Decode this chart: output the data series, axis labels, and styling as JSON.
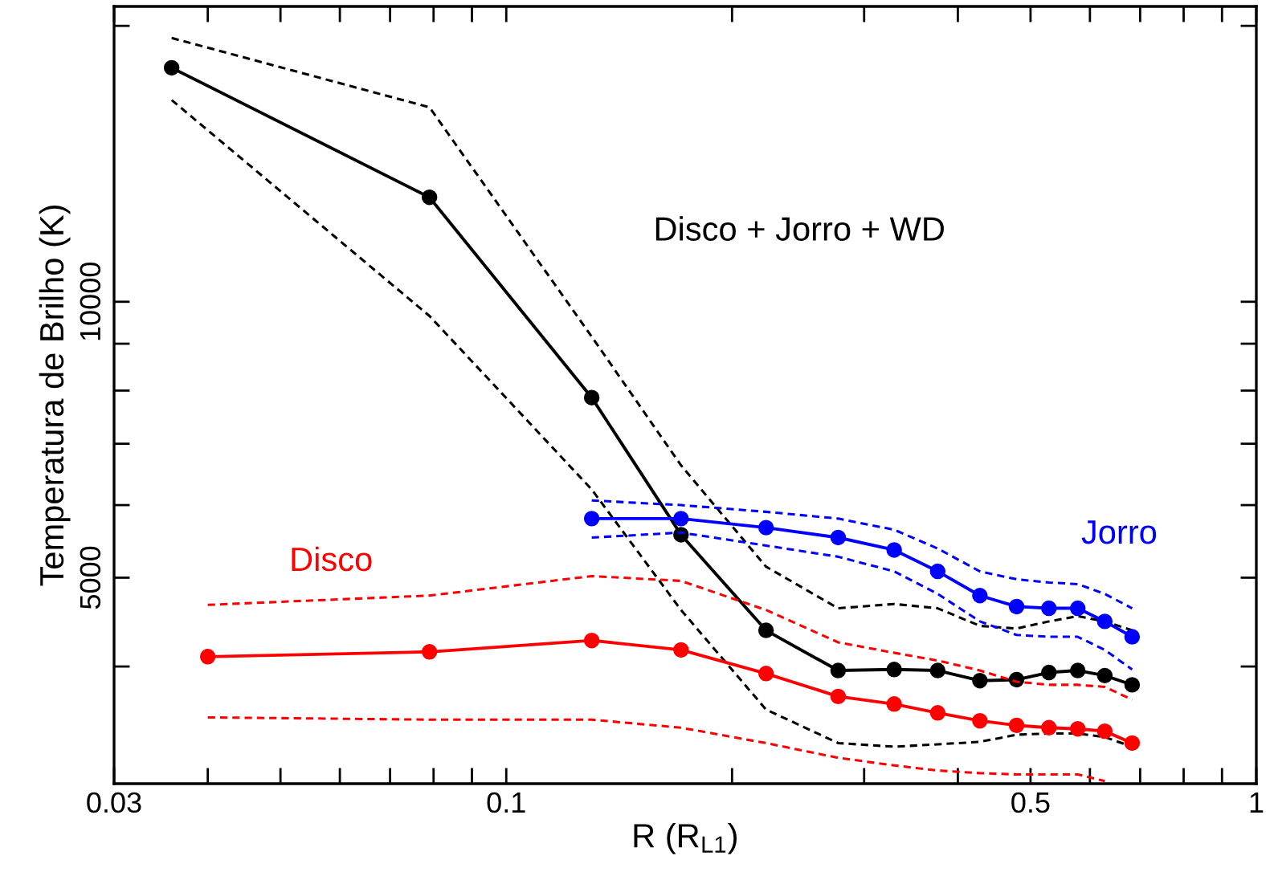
{
  "chart_data": {
    "type": "line",
    "xlabel": "R (R$_{L1}$)",
    "ylabel": "Temperatura de Brilho (K)",
    "log": "xy",
    "grid": false,
    "legend": false,
    "xlim": [
      0.03,
      1
    ],
    "ylim": [
      2980,
      21000
    ],
    "xticks": [
      {
        "value": 0.03,
        "label": "0.03"
      },
      {
        "value": 0.04,
        "label": null
      },
      {
        "value": 0.05,
        "label": null
      },
      {
        "value": 0.06,
        "label": null
      },
      {
        "value": 0.07,
        "label": null
      },
      {
        "value": 0.08,
        "label": null
      },
      {
        "value": 0.09,
        "label": null
      },
      {
        "value": 0.1,
        "label": "0.1"
      },
      {
        "value": 0.2,
        "label": null
      },
      {
        "value": 0.3,
        "label": null
      },
      {
        "value": 0.4,
        "label": null
      },
      {
        "value": 0.5,
        "label": "0.5"
      },
      {
        "value": 0.6,
        "label": null
      },
      {
        "value": 0.7,
        "label": null
      },
      {
        "value": 0.8,
        "label": null
      },
      {
        "value": 0.9,
        "label": null
      },
      1
    ],
    "yticks": [
      {
        "value": 4000,
        "label": null
      },
      5000,
      {
        "value": 6000,
        "label": null
      },
      {
        "value": 7000,
        "label": null
      },
      {
        "value": 8000,
        "label": null
      },
      {
        "value": 9000,
        "label": null
      },
      10000,
      {
        "value": 20000,
        "label": null
      }
    ],
    "series": [
      {
        "name": "Disco + Jorro + WD",
        "color": "#000000",
        "marker": "circle",
        "line_style": "solid",
        "x": [
          0.0358,
          0.079,
          0.13,
          0.171,
          0.222,
          0.277,
          0.329,
          0.376,
          0.428,
          0.479,
          0.529,
          0.578,
          0.628,
          0.683
        ],
        "values": [
          18000,
          13000,
          7860,
          5570,
          4380,
          3960,
          3970,
          3960,
          3860,
          3870,
          3940,
          3960,
          3910,
          3820
        ]
      },
      {
        "color": "#000000",
        "marker": "none",
        "line_style": "dashed",
        "x": [
          0.0358,
          0.079,
          0.13,
          0.171,
          0.222,
          0.277,
          0.329,
          0.376,
          0.428,
          0.479,
          0.529,
          0.578,
          0.628,
          0.683
        ],
        "values": [
          19400,
          16300,
          9160,
          6630,
          5140,
          4630,
          4680,
          4630,
          4430,
          4400,
          4480,
          4540,
          4480,
          4380
        ]
      },
      {
        "color": "#000000",
        "marker": "none",
        "line_style": "dashed",
        "x": [
          0.0358,
          0.079,
          0.13,
          0.171,
          0.222,
          0.277,
          0.329,
          0.376,
          0.428,
          0.479,
          0.529,
          0.578,
          0.628,
          0.683
        ],
        "values": [
          16600,
          9650,
          6240,
          4610,
          3590,
          3300,
          3270,
          3290,
          3310,
          3370,
          3380,
          3380,
          3350,
          3270
        ]
      },
      {
        "name": "Jorro",
        "color": "#0000ff",
        "marker": "circle",
        "line_style": "solid",
        "x": [
          0.13,
          0.171,
          0.222,
          0.277,
          0.329,
          0.376,
          0.428,
          0.479,
          0.529,
          0.578,
          0.628,
          0.683
        ],
        "values": [
          5800,
          5800,
          5670,
          5530,
          5360,
          5080,
          4780,
          4650,
          4630,
          4630,
          4480,
          4310
        ]
      },
      {
        "color": "#0000ff",
        "marker": "none",
        "line_style": "dashed",
        "x": [
          0.13,
          0.171,
          0.222,
          0.277,
          0.329,
          0.376,
          0.428,
          0.479,
          0.529,
          0.578,
          0.628,
          0.683
        ],
        "values": [
          6070,
          6000,
          5900,
          5800,
          5640,
          5380,
          5080,
          4980,
          4940,
          4920,
          4800,
          4630
        ]
      },
      {
        "color": "#0000ff",
        "marker": "none",
        "line_style": "dashed",
        "x": [
          0.13,
          0.171,
          0.222,
          0.277,
          0.329,
          0.376,
          0.428,
          0.479,
          0.529,
          0.578,
          0.628,
          0.683
        ],
        "values": [
          5530,
          5600,
          5420,
          5270,
          5080,
          4800,
          4480,
          4330,
          4310,
          4310,
          4170,
          3970
        ]
      },
      {
        "name": "Disco",
        "color": "#ff0000",
        "marker": "circle",
        "line_style": "solid",
        "x": [
          0.04,
          0.079,
          0.13,
          0.171,
          0.222,
          0.277,
          0.329,
          0.376,
          0.428,
          0.479,
          0.529,
          0.578,
          0.628,
          0.683
        ],
        "values": [
          4100,
          4150,
          4270,
          4170,
          3930,
          3710,
          3640,
          3560,
          3490,
          3450,
          3430,
          3420,
          3400,
          3300
        ]
      },
      {
        "color": "#ff0000",
        "marker": "none",
        "line_style": "dashed",
        "x": [
          0.04,
          0.079,
          0.13,
          0.171,
          0.222,
          0.277,
          0.329,
          0.376,
          0.428,
          0.479,
          0.529,
          0.578,
          0.628,
          0.683
        ],
        "values": [
          4670,
          4780,
          5020,
          4960,
          4610,
          4250,
          4140,
          4060,
          3960,
          3850,
          3820,
          3820,
          3800,
          3680
        ]
      },
      {
        "color": "#ff0000",
        "marker": "none",
        "line_style": "dashed",
        "x": [
          0.04,
          0.079,
          0.13,
          0.171,
          0.222,
          0.277,
          0.329,
          0.376,
          0.428,
          0.479,
          0.529,
          0.578,
          0.628
        ],
        "values": [
          3520,
          3500,
          3500,
          3430,
          3300,
          3180,
          3120,
          3080,
          3060,
          3050,
          3050,
          3050,
          3000
        ]
      }
    ]
  }
}
